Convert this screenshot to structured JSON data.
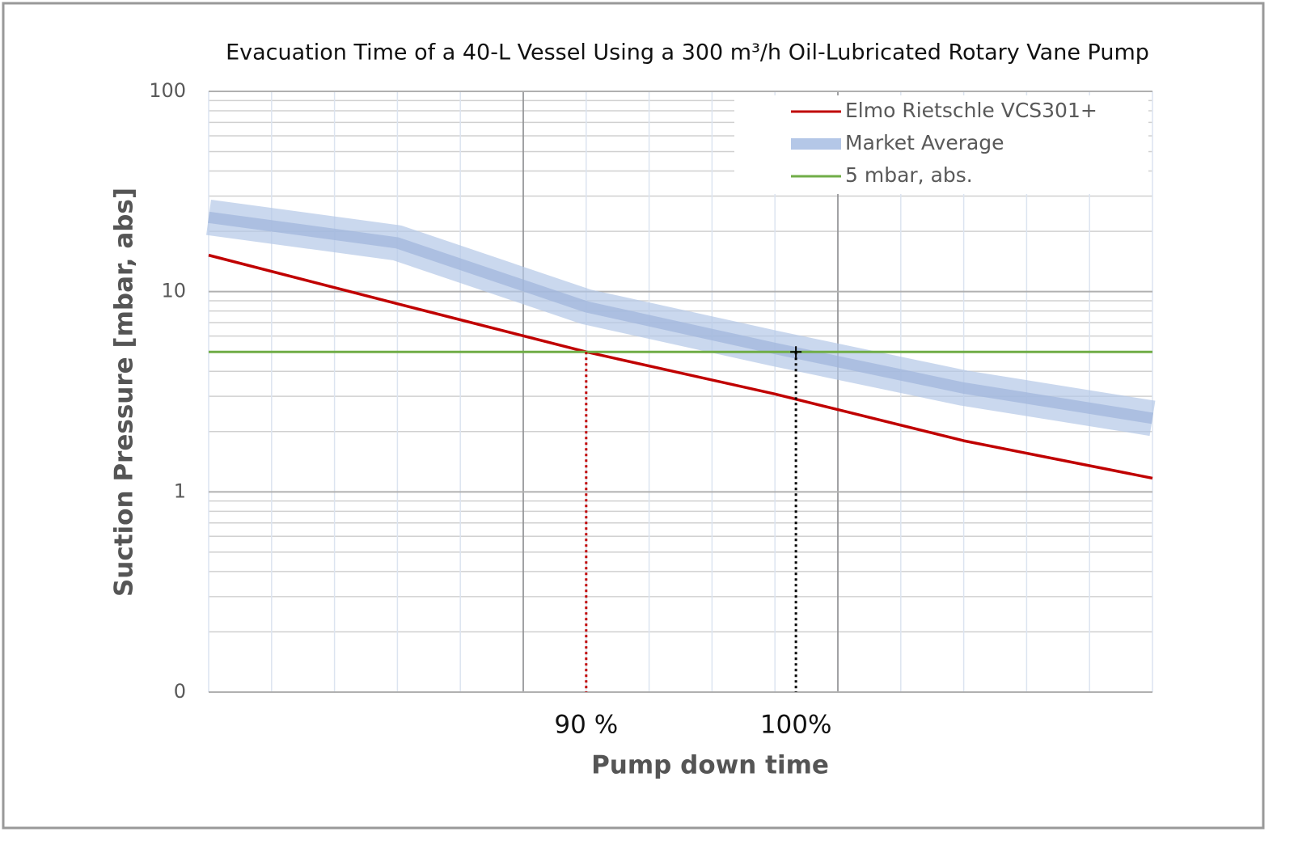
{
  "chart_data": {
    "type": "line",
    "title": "Evacuation Time of a 40-L Vessel Using a 300 m³/h Oil-Lubricated Rotary Vane Pump",
    "x_label": "Pump down time",
    "y_label": "Suction Pressure [mbar, abs]",
    "y_scale": "log",
    "grid": true,
    "legend_position": "upper right",
    "x": [
      72,
      81,
      90,
      99,
      108,
      117
    ],
    "series": [
      {
        "name": "Elmo Rietschle VCS301+",
        "color": "#c00000",
        "values": [
          15.2,
          8.7,
          5,
          3.08,
          1.8,
          1.17
        ]
      },
      {
        "name": "Market Average",
        "color": "#b4c7e7",
        "values": [
          23.5,
          17.5,
          8.4,
          5.2,
          3.3,
          2.33
        ]
      },
      {
        "name": "5 mbar, abs.",
        "color": "#70ad47",
        "values": [
          5,
          5,
          5,
          5,
          5,
          5
        ]
      }
    ],
    "markers": [
      {
        "x": 90,
        "y": 5,
        "color": "#c00000"
      },
      {
        "x": 100,
        "y": 5,
        "color": "#000000"
      }
    ],
    "xlim": [
      72,
      117
    ],
    "xticks": [
      {
        "value": 90,
        "label": "90 %"
      },
      {
        "value": 100,
        "label": "100%"
      }
    ],
    "xgrid": [
      72,
      75,
      78,
      81,
      84,
      87,
      90,
      93,
      96,
      99,
      102,
      105,
      108,
      111,
      114,
      117
    ],
    "xgrid_major": [
      87,
      102
    ],
    "ylim": [
      0.1,
      100
    ],
    "yticks": [
      {
        "value": 0.1,
        "label": "0"
      },
      1,
      10,
      100
    ],
    "yminor": [
      0.2,
      0.3,
      0.4,
      0.5,
      0.6,
      0.7,
      0.8,
      0.9,
      2,
      3,
      4,
      5,
      6,
      7,
      8,
      9,
      20,
      30,
      40,
      50,
      60,
      70,
      80,
      90
    ]
  }
}
